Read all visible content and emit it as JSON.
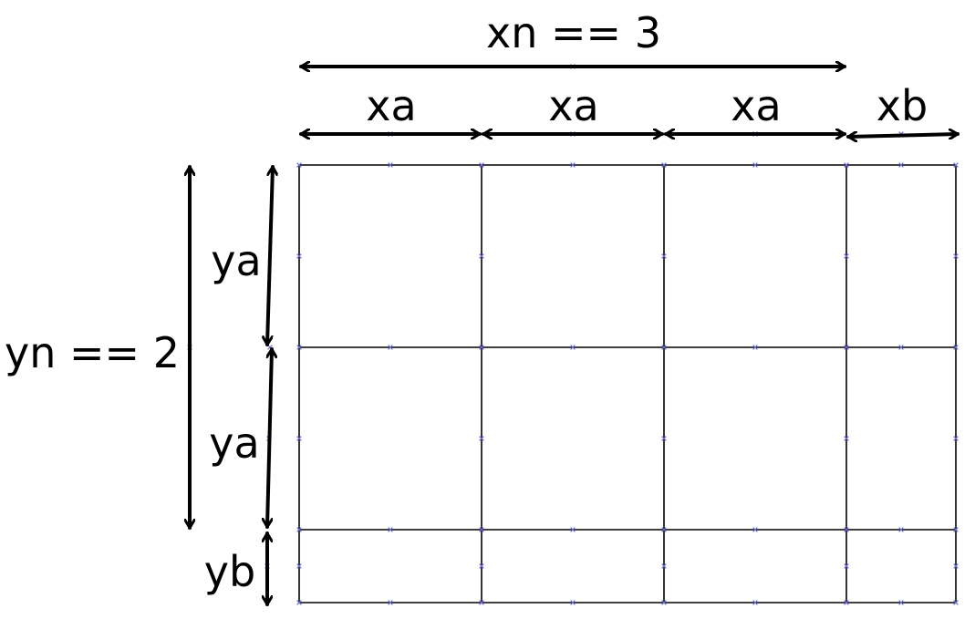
{
  "labels": {
    "xn": "xn == 3",
    "yn": "yn == 2",
    "xa_1": "xa",
    "xa_2": "xa",
    "xa_3": "xa",
    "xb": "xb",
    "ya_1": "ya",
    "ya_2": "ya",
    "yb": "yb"
  },
  "colors": {
    "line": "#000000",
    "node_marker": "#6f6fd8",
    "background": "#ffffff"
  }
}
